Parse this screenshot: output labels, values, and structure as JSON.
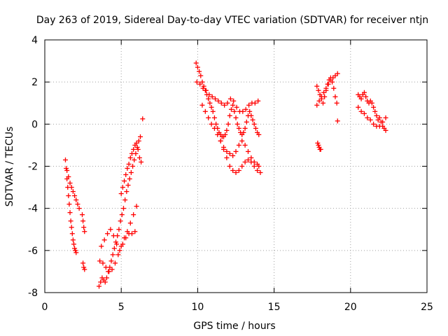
{
  "chart_data": {
    "type": "scatter",
    "title": "Day 263 of 2019, Sidereal Day-to-day VTEC variation (SDTVAR) for receiver ntjn",
    "xlabel": "GPS time / hours",
    "ylabel": "SDTVAR / TECUs",
    "xlim": [
      0,
      25
    ],
    "ylim": [
      -8,
      4
    ],
    "x_ticks": [
      "0",
      "5",
      "10",
      "15",
      "20",
      "25"
    ],
    "y_ticks": [
      "-8",
      "-6",
      "-4",
      "-2",
      "0",
      "2",
      "4"
    ],
    "grid": true,
    "marker": "+",
    "color": "#ff0000",
    "series": [
      {
        "x": [
          1.35,
          1.4,
          1.45,
          1.5,
          1.55,
          1.6,
          1.65,
          1.7,
          1.75,
          1.8,
          1.85,
          1.9,
          1.95,
          2.0,
          2.05
        ],
        "y": [
          -1.7,
          -2.1,
          -2.6,
          -3.0,
          -3.4,
          -3.8,
          -4.2,
          -4.6,
          -4.9,
          -5.2,
          -5.5,
          -5.7,
          -5.9,
          -6.0,
          -6.1
        ]
      },
      {
        "x": [
          1.45,
          1.55,
          1.65,
          1.75,
          1.85,
          1.95,
          2.05,
          2.15,
          2.25
        ],
        "y": [
          -2.2,
          -2.5,
          -2.8,
          -3.0,
          -3.2,
          -3.4,
          -3.6,
          -3.8,
          -4.0
        ]
      },
      {
        "x": [
          2.45,
          2.5,
          2.55,
          2.6,
          2.5,
          2.55,
          2.6
        ],
        "y": [
          -4.3,
          -4.6,
          -4.9,
          -5.1,
          -6.6,
          -6.8,
          -6.9
        ]
      },
      {
        "x": [
          3.55,
          3.65,
          3.75,
          3.85,
          3.95,
          4.05,
          4.15,
          4.25,
          4.35,
          4.45,
          4.55,
          4.65,
          4.75,
          4.85,
          4.95,
          5.05,
          5.15,
          5.25,
          5.35,
          5.45,
          5.55,
          5.65,
          5.75,
          5.85,
          5.95,
          6.05,
          6.15,
          6.25
        ],
        "y": [
          -7.7,
          -7.5,
          -7.3,
          -7.4,
          -7.5,
          -7.3,
          -7.0,
          -6.8,
          -6.5,
          -6.2,
          -5.9,
          -5.6,
          -5.3,
          -5.0,
          -4.6,
          -4.3,
          -4.0,
          -3.6,
          -3.2,
          -2.9,
          -2.6,
          -2.3,
          -2.0,
          -1.7,
          -1.4,
          -1.1,
          -0.8,
          -0.6
        ]
      },
      {
        "x": [
          3.6,
          3.8,
          4.0,
          4.2,
          4.4,
          4.6,
          4.8,
          5.0,
          5.2,
          5.4,
          5.6,
          5.8,
          6.0
        ],
        "y": [
          -6.5,
          -6.6,
          -6.8,
          -7.0,
          -6.9,
          -6.6,
          -6.2,
          -5.8,
          -5.4,
          -5.1,
          -4.7,
          -4.3,
          -3.9
        ]
      },
      {
        "x": [
          3.7,
          3.9,
          4.1,
          4.3,
          4.5,
          4.7,
          4.9,
          5.1,
          5.3,
          5.5,
          5.7,
          5.9
        ],
        "y": [
          -5.8,
          -5.5,
          -5.2,
          -5.0,
          -5.3,
          -5.7,
          -6.0,
          -5.7,
          -5.4,
          -5.2,
          -5.2,
          -5.1
        ]
      },
      {
        "x": [
          5.0,
          5.1,
          5.2,
          5.3,
          5.4,
          5.5,
          5.6,
          5.7,
          5.8,
          5.9,
          6.0,
          6.1,
          6.2,
          6.3,
          6.4
        ],
        "y": [
          -3.3,
          -3.0,
          -2.7,
          -2.4,
          -2.1,
          -1.9,
          -1.6,
          -1.4,
          -1.2,
          -1.0,
          -0.9,
          -1.2,
          -1.6,
          -1.8,
          0.25
        ]
      },
      {
        "x": [
          9.9,
          10.0,
          10.1,
          10.2,
          10.3,
          10.4,
          10.5,
          10.6,
          10.7,
          10.8,
          10.9,
          11.0,
          11.1,
          11.2,
          11.3,
          11.4,
          11.5,
          11.6,
          11.7,
          11.8,
          11.9,
          12.0,
          12.1,
          12.2,
          12.3,
          12.4,
          12.5,
          12.6,
          12.7,
          12.8,
          12.9,
          13.0,
          13.1,
          13.2,
          13.3,
          13.4,
          13.5,
          13.6,
          13.7,
          13.8,
          13.9,
          14.0
        ],
        "y": [
          2.9,
          2.7,
          2.5,
          2.3,
          2.0,
          1.8,
          1.6,
          1.4,
          1.2,
          1.0,
          0.8,
          0.6,
          0.3,
          0.0,
          -0.2,
          -0.4,
          -0.5,
          -0.6,
          -0.6,
          -0.5,
          -0.3,
          0.0,
          0.4,
          0.7,
          0.9,
          0.6,
          0.3,
          0.0,
          -0.2,
          -0.4,
          -0.5,
          -0.4,
          -0.2,
          0.1,
          0.4,
          0.6,
          0.4,
          0.2,
          0.0,
          -0.2,
          -0.4,
          -0.5
        ]
      },
      {
        "x": [
          9.95,
          10.15,
          10.35,
          10.55,
          10.75,
          10.95,
          11.15,
          11.35,
          11.55,
          11.75,
          11.95,
          12.15,
          12.35,
          12.55,
          12.75,
          12.95,
          13.15,
          13.35,
          13.55,
          13.75,
          13.95
        ],
        "y": [
          2.0,
          1.9,
          1.7,
          1.6,
          1.4,
          1.3,
          1.2,
          1.1,
          1.0,
          0.9,
          1.0,
          1.2,
          1.1,
          0.8,
          0.6,
          0.6,
          0.7,
          0.9,
          1.0,
          1.0,
          1.1
        ]
      },
      {
        "x": [
          10.3,
          10.5,
          10.7,
          10.9,
          11.1,
          11.3,
          11.5,
          11.7,
          11.9,
          12.1,
          12.3,
          12.5,
          12.7,
          12.9,
          13.1,
          13.3,
          13.5,
          13.7,
          13.9,
          14.0
        ],
        "y": [
          0.9,
          0.6,
          0.3,
          0.0,
          -0.2,
          -0.5,
          -0.8,
          -1.1,
          -1.3,
          -1.4,
          -1.5,
          -1.3,
          -1.0,
          -0.8,
          -1.0,
          -1.3,
          -1.6,
          -1.8,
          -1.9,
          -2.0
        ]
      },
      {
        "x": [
          11.5,
          11.7,
          11.9,
          12.1,
          12.3,
          12.5,
          12.7,
          12.9,
          13.1,
          13.3,
          13.5,
          13.7,
          13.9,
          14.1
        ],
        "y": [
          -0.8,
          -1.2,
          -1.6,
          -2.0,
          -2.2,
          -2.3,
          -2.2,
          -2.0,
          -1.8,
          -1.7,
          -1.8,
          -2.0,
          -2.2,
          -2.3
        ]
      },
      {
        "x": [
          17.8,
          17.9,
          18.0,
          18.1,
          18.2,
          18.3,
          18.4,
          18.5,
          18.6,
          18.7,
          18.8,
          18.9,
          19.0,
          19.1
        ],
        "y": [
          1.8,
          1.6,
          1.4,
          1.2,
          1.0,
          1.3,
          1.6,
          1.9,
          2.1,
          2.2,
          2.0,
          1.7,
          1.3,
          1.0
        ]
      },
      {
        "x": [
          17.8,
          17.95,
          18.1,
          18.25,
          18.4,
          18.55,
          18.7,
          18.85,
          19.0,
          19.15
        ],
        "y": [
          0.9,
          1.1,
          1.3,
          1.5,
          1.7,
          1.9,
          2.1,
          2.2,
          2.3,
          2.4
        ]
      },
      {
        "x": [
          17.85,
          17.9,
          17.95,
          18.0,
          18.05,
          19.15
        ],
        "y": [
          -0.9,
          -1.0,
          -1.1,
          -1.2,
          -1.2,
          0.15
        ]
      },
      {
        "x": [
          20.5,
          20.6,
          20.7,
          20.8,
          20.9,
          21.0,
          21.1,
          21.2,
          21.3,
          21.4,
          21.5,
          21.6,
          21.7,
          21.8,
          21.9,
          22.0,
          22.1,
          22.2,
          22.3
        ],
        "y": [
          1.4,
          1.3,
          1.2,
          1.4,
          1.5,
          1.3,
          1.1,
          1.0,
          1.1,
          1.0,
          0.8,
          0.6,
          0.4,
          0.2,
          0.3,
          0.1,
          -0.1,
          -0.2,
          -0.3
        ]
      },
      {
        "x": [
          20.5,
          20.7,
          20.9,
          21.1,
          21.3,
          21.5,
          21.7,
          21.9,
          22.1,
          22.3
        ],
        "y": [
          0.8,
          0.6,
          0.5,
          0.3,
          0.2,
          0.0,
          -0.1,
          -0.1,
          0.1,
          0.3
        ]
      }
    ]
  }
}
